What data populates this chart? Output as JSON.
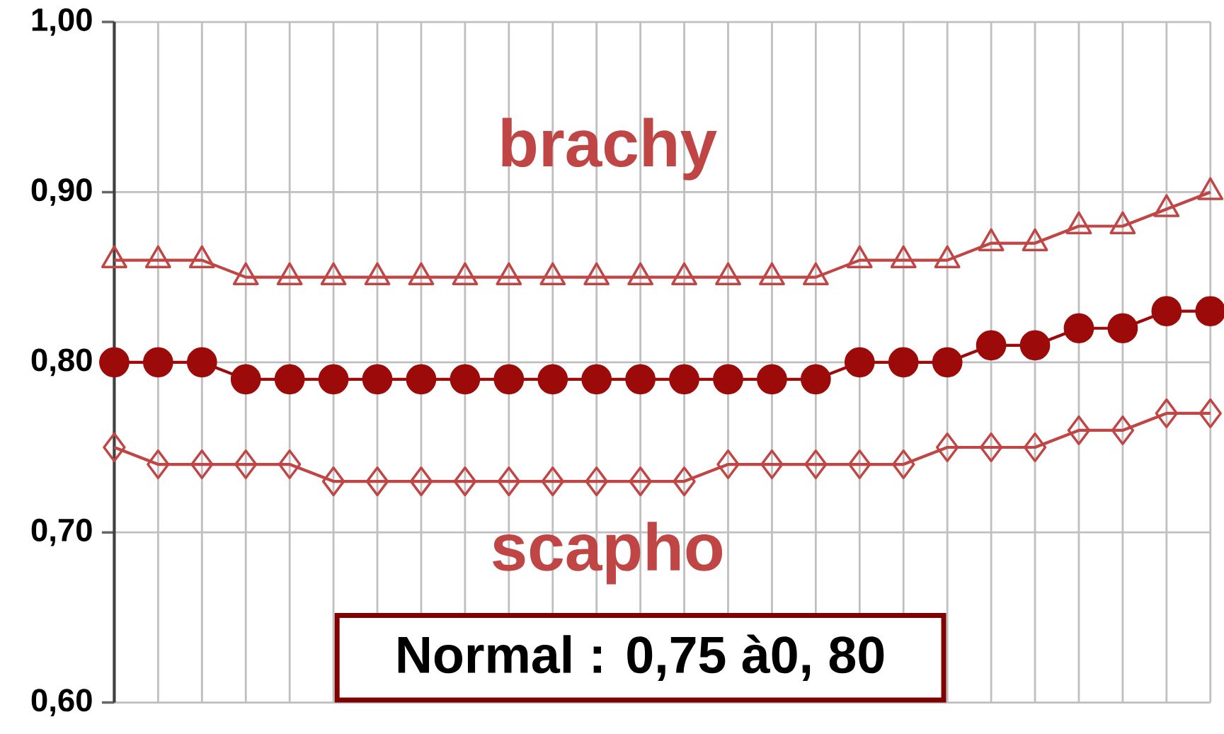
{
  "chart_data": {
    "type": "line",
    "categories": [
      null,
      null,
      null,
      null,
      null,
      null,
      null,
      null,
      null,
      null,
      null,
      null,
      null,
      null,
      null,
      null,
      null,
      null,
      null,
      null,
      null,
      null,
      null,
      null,
      null,
      null
    ],
    "series": [
      {
        "name": "brachy",
        "color": "#c04545",
        "marker": "triangle",
        "values": [
          0.86,
          0.86,
          0.86,
          0.85,
          0.85,
          0.85,
          0.85,
          0.85,
          0.85,
          0.85,
          0.85,
          0.85,
          0.85,
          0.85,
          0.85,
          0.85,
          0.85,
          0.86,
          0.86,
          0.86,
          0.87,
          0.87,
          0.88,
          0.88,
          0.89,
          0.9
        ]
      },
      {
        "color": "#9c0a0a",
        "marker": "circle",
        "values": [
          0.8,
          0.8,
          0.8,
          0.79,
          0.79,
          0.79,
          0.79,
          0.79,
          0.79,
          0.79,
          0.79,
          0.79,
          0.79,
          0.79,
          0.79,
          0.79,
          0.79,
          0.8,
          0.8,
          0.8,
          0.81,
          0.81,
          0.82,
          0.82,
          0.83,
          0.83
        ]
      },
      {
        "name": "scapho",
        "color": "#c04545",
        "marker": "diamond",
        "values": [
          0.75,
          0.74,
          0.74,
          0.74,
          0.74,
          0.73,
          0.73,
          0.73,
          0.73,
          0.73,
          0.73,
          0.73,
          0.73,
          0.73,
          0.74,
          0.74,
          0.74,
          0.74,
          0.74,
          0.75,
          0.75,
          0.75,
          0.76,
          0.76,
          0.77,
          0.77
        ]
      }
    ],
    "ylim": [
      0.6,
      1.0
    ],
    "yticks": [
      {
        "value": 0.6,
        "label": "0,60"
      },
      {
        "value": 0.7,
        "label": "0,70"
      },
      {
        "value": 0.8,
        "label": "0,80"
      },
      {
        "value": 0.9,
        "label": "0,90"
      },
      {
        "value": 1.0,
        "label": "1,00"
      }
    ],
    "grid": true,
    "legend": false,
    "tick_labels": "y",
    "annotations": [
      "Normal : 0,75 à0, 80"
    ]
  }
}
